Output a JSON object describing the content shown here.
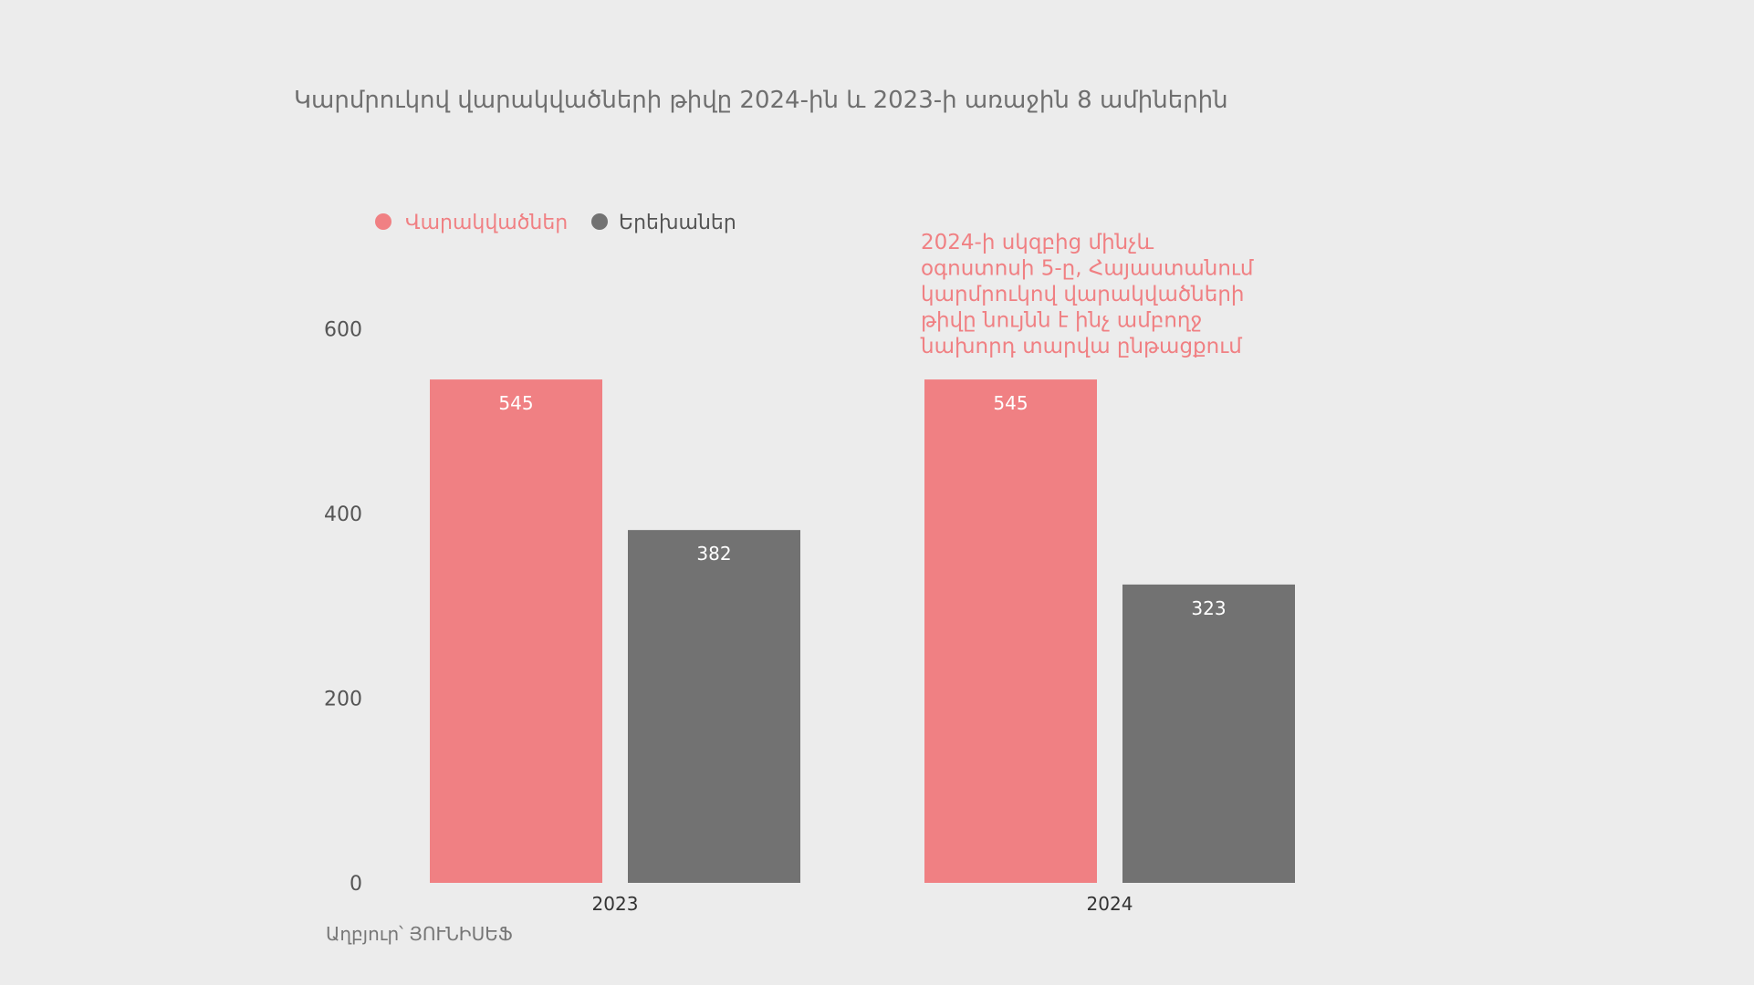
{
  "chart_data": {
    "type": "bar",
    "title": "Կարմրուկով վարակվածների թիվը 2024-ին և 2023-ի առաջին 8 ամիներին",
    "categories": [
      "2023",
      "2024"
    ],
    "series": [
      {
        "name": "Վարակվածներ",
        "values": [
          545,
          545
        ],
        "color": "#f08083"
      },
      {
        "name": "Երեխաներ",
        "values": [
          382,
          323
        ],
        "color": "#727272"
      }
    ],
    "y_ticks": [
      0,
      200,
      400,
      600
    ],
    "ylim": [
      0,
      630
    ],
    "grid": false,
    "legend": "top-left",
    "annotation": {
      "lines": [
        "2024-ի սկզբից մինչև",
        "օգոստոսի 5-ը, Հայաստանում",
        "կարմրուկով վարակվածների",
        "թիվը նույնն է ինչ ամբողջ",
        "նախորդ տարվա ընթացքում"
      ],
      "color": "#f08083"
    },
    "source": "Աղբյուր՝ ՅՈՒՆԻՍԵՖ"
  }
}
